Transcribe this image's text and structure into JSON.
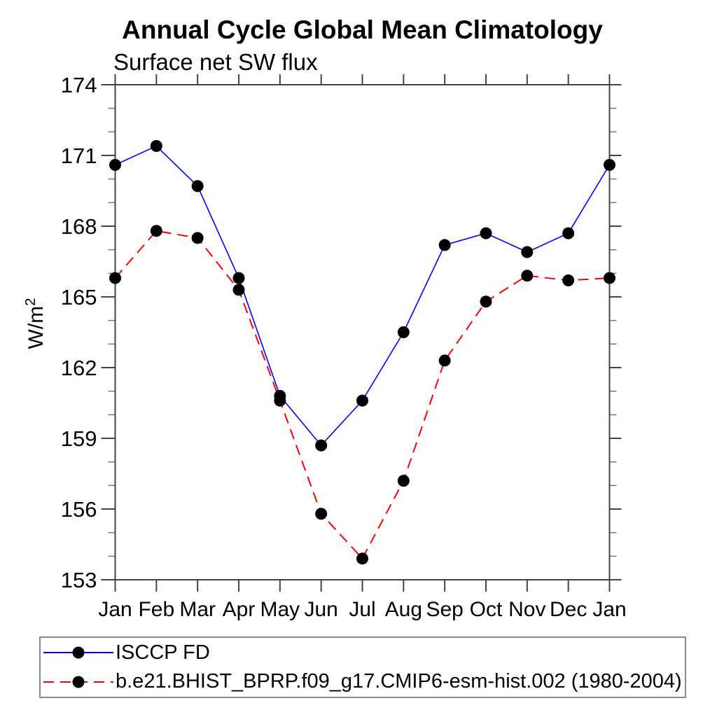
{
  "title": "Annual Cycle Global Mean Climatology",
  "subtitle": "Surface net SW flux",
  "ylabel": {
    "base": "W/m",
    "sup": "2"
  },
  "colors": {
    "series1": "#0000ff",
    "series2": "#ff0000",
    "marker": "#000000",
    "axis": "#444444",
    "minor_tick": "#777777",
    "text": "#000000",
    "legend_border": "#888888"
  },
  "legend": {
    "position": "bottom",
    "entries": [
      {
        "label": "ISCCP FD",
        "line_style": "solid",
        "line_color": "#0000ff",
        "marker": "filled-circle"
      },
      {
        "label": "b.e21.BHIST_BPRP.f09_g17.CMIP6-esm-hist.002 (1980-2004)",
        "line_style": "dashed",
        "line_color": "#ff0000",
        "marker": "filled-circle"
      }
    ]
  },
  "chart_data": {
    "type": "line",
    "title": "Annual Cycle Global Mean Climatology",
    "subtitle": "Surface net SW flux",
    "xlabel": "",
    "ylabel": "W/m²",
    "categories": [
      "Jan",
      "Feb",
      "Mar",
      "Apr",
      "May",
      "Jun",
      "Jul",
      "Aug",
      "Sep",
      "Oct",
      "Nov",
      "Dec",
      "Jan"
    ],
    "series": [
      {
        "name": "ISCCP FD",
        "color": "#0000ff",
        "style": "solid",
        "marker": "filled-circle",
        "values": [
          170.6,
          171.4,
          169.7,
          165.8,
          160.8,
          158.7,
          160.6,
          163.5,
          167.2,
          167.7,
          166.9,
          167.7,
          170.6
        ]
      },
      {
        "name": "b.e21.BHIST_BPRP.f09_g17.CMIP6-esm-hist.002 (1980-2004)",
        "color": "#ff0000",
        "style": "dashed",
        "marker": "filled-circle",
        "values": [
          165.8,
          167.8,
          167.5,
          165.3,
          160.6,
          155.8,
          153.9,
          157.2,
          162.3,
          164.8,
          165.9,
          165.7,
          165.8
        ]
      }
    ],
    "ylim": [
      153,
      174
    ],
    "ytick_step": 3,
    "yminor_step": 1,
    "ytick_labels": [
      "153",
      "156",
      "159",
      "162",
      "165",
      "168",
      "171",
      "174"
    ],
    "grid": false,
    "legend_position": "bottom"
  }
}
